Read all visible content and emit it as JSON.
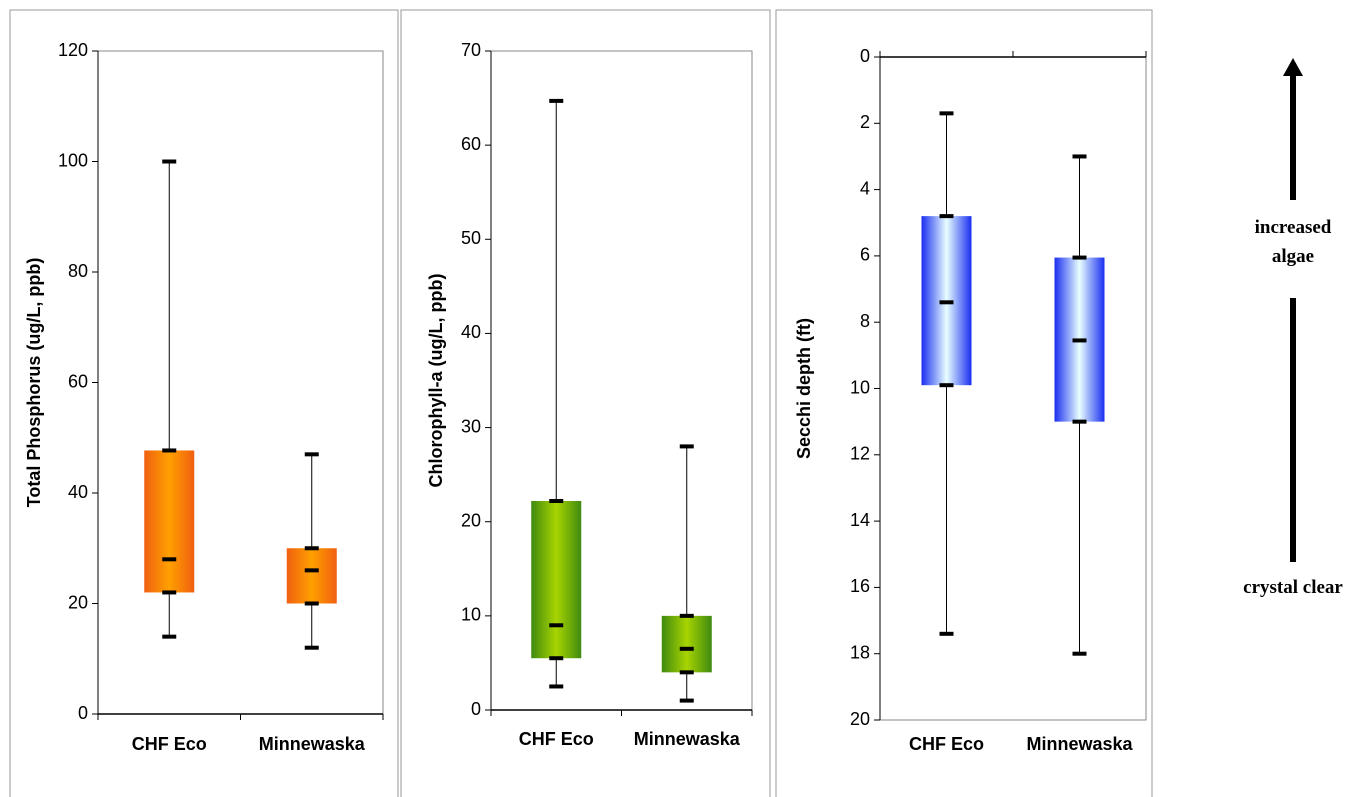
{
  "chart_data": [
    {
      "type": "box",
      "y_label": "Total Phosphorus (ug/L, ppb)",
      "categories": [
        "CHF Eco",
        "Minnewaska"
      ],
      "min": [
        14,
        12
      ],
      "q1": [
        22,
        20
      ],
      "median": [
        28,
        26
      ],
      "q3": [
        47.7,
        30
      ],
      "max": [
        100,
        47
      ],
      "color": "#f06010",
      "color_center": "#ffa000",
      "ylim": [
        0,
        120
      ],
      "yticks": [
        0,
        20,
        40,
        60,
        80,
        100,
        120
      ],
      "grid": false
    },
    {
      "type": "box",
      "y_label": "Chlorophyll-a (ug/L, ppb)",
      "categories": [
        "CHF Eco",
        "Minnewaska"
      ],
      "min": [
        2.5,
        1
      ],
      "q1": [
        5.5,
        4
      ],
      "median": [
        9,
        6.5
      ],
      "q3": [
        22.2,
        10
      ],
      "max": [
        64.7,
        28
      ],
      "color": "#3f8a10",
      "color_center": "#a8d400",
      "ylim": [
        0,
        70
      ],
      "yticks": [
        0,
        10,
        20,
        30,
        40,
        50,
        60,
        70
      ],
      "grid": false
    },
    {
      "type": "box",
      "y_label": "Secchi depth (ft)",
      "categories": [
        "CHF Eco",
        "Minnewaska"
      ],
      "min": [
        1.7,
        3
      ],
      "q1": [
        4.8,
        6.05
      ],
      "median": [
        7.4,
        8.55
      ],
      "q3": [
        9.9,
        11
      ],
      "max": [
        17.4,
        18
      ],
      "color": "#1a2ef0",
      "color_center": "#e8ffff",
      "ylim": [
        20,
        0
      ],
      "yticks": [
        0,
        2,
        4,
        6,
        8,
        10,
        12,
        14,
        16,
        18,
        20
      ],
      "grid": false
    }
  ],
  "annotations": [
    "increased algae",
    "crystal clear"
  ]
}
